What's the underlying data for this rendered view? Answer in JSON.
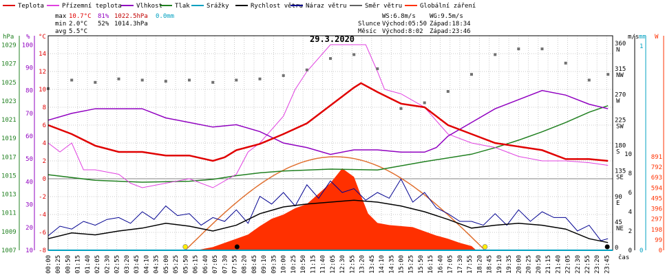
{
  "chart_data": {
    "type": "line",
    "title": "29.3.2020",
    "xlabel": "čas",
    "legend": {
      "items": [
        {
          "name": "Teplota",
          "color": "#e00000"
        },
        {
          "name": "Přízemní teplota",
          "color": "#e040e0"
        },
        {
          "name": "Vlhkost",
          "color": "#9000c0"
        },
        {
          "name": "Tlak",
          "color": "#208020"
        },
        {
          "name": "Srážky",
          "color": "#00a0c0"
        },
        {
          "name": "Rychlost větru",
          "color": "#000000"
        },
        {
          "name": "Náraz větru",
          "color": "#000090"
        },
        {
          "name": "Směr větru",
          "color": "#606060"
        },
        {
          "name": "Globální záření",
          "color": "#ff3000"
        }
      ],
      "placement": "top"
    },
    "stats": {
      "max": {
        "label": "max",
        "temp": "10.7°C",
        "hum": "81%",
        "press": "1022.5hPa",
        "rain": "0.0mm"
      },
      "min": {
        "label": "min",
        "temp": "2.0°C",
        "hum": "52%",
        "press": "1014.3hPa"
      },
      "avg": {
        "label": "avg",
        "temp": "5.5°C"
      }
    },
    "info": {
      "ws": "WS:6.8m/s",
      "wg": "WG:9.5m/s",
      "sun_label": "Slunce",
      "sun_rise": "Východ:05:50",
      "sun_set": "Západ:18:34",
      "moon_label": "Měsíc",
      "moon_rise": "Východ:8:02",
      "moon_set": "Západ:23:46"
    },
    "axis_units": {
      "press": "hPa",
      "hum": "%",
      "temp": "°C",
      "wind": "m/s",
      "rain": "mm",
      "rad": "W"
    },
    "press_ticks": [
      1007,
      1009,
      1011,
      1013,
      1015,
      1017,
      1019,
      1021,
      1023,
      1025,
      1027,
      1029
    ],
    "hum_ticks": [
      10,
      20,
      30,
      40,
      50,
      60,
      70,
      80,
      90,
      100
    ],
    "temp_ticks": [
      -8,
      -6,
      -4,
      -2,
      0,
      2,
      4,
      6,
      8,
      10,
      12,
      14
    ],
    "wind_ticks": [
      0,
      2,
      4,
      6,
      8,
      10
    ],
    "rain_ticks": [
      0,
      1
    ],
    "rad_ticks": [
      0,
      99,
      198,
      297,
      396,
      495,
      594,
      693,
      792,
      891
    ],
    "dir_ticks": [
      {
        "deg": "360",
        "dir": "N"
      },
      {
        "deg": "315",
        "dir": "NW"
      },
      {
        "deg": "270",
        "dir": "W"
      },
      {
        "deg": "225",
        "dir": "SW"
      },
      {
        "deg": "180",
        "dir": "S"
      },
      {
        "deg": "135",
        "dir": "SE"
      },
      {
        "deg": "90",
        "dir": "E"
      },
      {
        "deg": "45",
        "dir": "NE"
      },
      {
        "deg": "0",
        "dir": ""
      }
    ],
    "x_ticks": [
      "00:00",
      "00:25",
      "00:50",
      "01:15",
      "01:40",
      "02:05",
      "02:30",
      "02:55",
      "03:20",
      "03:45",
      "04:10",
      "04:35",
      "05:00",
      "05:25",
      "05:50",
      "06:15",
      "06:40",
      "07:05",
      "07:30",
      "07:55",
      "08:20",
      "08:45",
      "09:10",
      "09:35",
      "10:00",
      "10:25",
      "10:50",
      "11:15",
      "11:40",
      "12:05",
      "12:30",
      "12:55",
      "13:20",
      "13:45",
      "14:10",
      "14:35",
      "15:00",
      "15:25",
      "15:50",
      "16:15",
      "16:40",
      "17:05",
      "17:30",
      "17:55",
      "18:20",
      "18:45",
      "19:10",
      "19:35",
      "20:00",
      "20:25",
      "20:50",
      "21:15",
      "21:40",
      "22:05",
      "22:30",
      "22:55",
      "23:20",
      "23:45"
    ],
    "series": [
      {
        "key": "temp",
        "name": "Teplota",
        "unit": "°C",
        "x": [
          0,
          1,
          2,
          3,
          4,
          5,
          6,
          7,
          7.5,
          8,
          9,
          10,
          11,
          12,
          12.5,
          13,
          13.3,
          14,
          15,
          16,
          17,
          18,
          19,
          20,
          21,
          22,
          23,
          23.8
        ],
        "values": [
          6.0,
          5.0,
          3.7,
          3.0,
          3.0,
          2.6,
          2.6,
          2.0,
          2.4,
          3.2,
          3.9,
          5.0,
          6.2,
          8.2,
          9.2,
          10.2,
          10.7,
          9.7,
          8.4,
          8.0,
          6.0,
          5.0,
          4.0,
          3.6,
          3.2,
          2.2,
          2.2,
          2.0
        ]
      },
      {
        "key": "ground",
        "name": "Přízemní teplota",
        "unit": "°C",
        "x": [
          0,
          0.5,
          1,
          1.5,
          2,
          3,
          3.5,
          4,
          5,
          6,
          7,
          8,
          8.5,
          9,
          10,
          10.5,
          11,
          12,
          13,
          13.5,
          14,
          14.3,
          15,
          16,
          17,
          18,
          19,
          20,
          21,
          22,
          23,
          23.8
        ],
        "values": [
          4,
          3,
          4,
          1,
          1,
          0.5,
          -0.5,
          -1,
          -0.5,
          0,
          -1,
          0.5,
          3,
          4,
          7,
          10,
          12,
          15,
          15,
          15,
          12,
          10,
          9.5,
          8,
          5,
          4,
          3.5,
          2.5,
          2,
          2,
          1.8,
          1.5
        ]
      },
      {
        "key": "hum",
        "name": "Vlhkost",
        "unit": "%",
        "x": [
          0,
          1,
          2,
          4,
          5,
          6,
          7,
          8,
          9,
          10,
          11,
          12,
          13,
          14,
          15,
          16,
          16.5,
          17,
          18,
          19,
          20,
          21,
          22,
          23,
          23.8
        ],
        "values": [
          67,
          70,
          72,
          72,
          68,
          66,
          64,
          65,
          62,
          57,
          55,
          52,
          54,
          54,
          53,
          53,
          55,
          60,
          66,
          72,
          76,
          80,
          78,
          74,
          72
        ]
      },
      {
        "key": "press",
        "name": "Tlak",
        "unit": "hPa",
        "x": [
          0,
          2,
          4,
          6,
          7,
          8,
          9,
          10,
          12,
          14,
          16,
          18,
          19,
          20,
          21,
          22,
          23,
          23.8
        ],
        "values": [
          1015.1,
          1014.5,
          1014.3,
          1014.4,
          1014.6,
          1015.0,
          1015.3,
          1015.5,
          1015.7,
          1015.6,
          1016.5,
          1017.3,
          1018.0,
          1018.8,
          1019.7,
          1020.7,
          1021.8,
          1022.5
        ]
      },
      {
        "key": "wind",
        "name": "Rychlost větru",
        "unit": "m/s",
        "x": [
          0,
          1,
          2,
          3,
          4,
          5,
          6,
          7,
          8,
          9,
          10,
          11,
          12,
          13,
          14,
          15,
          16,
          17,
          18,
          19,
          20,
          21,
          22,
          23,
          23.8
        ],
        "values": [
          1.2,
          1.8,
          1.6,
          2.0,
          2.3,
          2.8,
          2.5,
          2.0,
          2.6,
          3.8,
          4.5,
          4.8,
          5.0,
          5.2,
          5.0,
          4.6,
          4.0,
          3.2,
          2.3,
          2.6,
          2.8,
          2.6,
          2.2,
          1.2,
          0.8
        ]
      },
      {
        "key": "gust",
        "name": "Náraz větru",
        "unit": "m/s",
        "x": [
          0,
          0.5,
          1,
          1.5,
          2,
          2.5,
          3,
          3.5,
          4,
          4.5,
          5,
          5.5,
          6,
          6.5,
          7,
          7.5,
          8,
          8.5,
          9,
          9.5,
          10,
          10.5,
          11,
          11.5,
          12,
          12.5,
          13,
          13.5,
          14,
          14.5,
          15,
          15.5,
          16,
          16.5,
          17,
          17.5,
          18,
          18.5,
          19,
          19.5,
          20,
          20.5,
          21,
          21.5,
          22,
          22.5,
          23,
          23.5,
          23.8
        ],
        "values": [
          1.5,
          2.5,
          2.2,
          3.0,
          2.6,
          3.2,
          3.4,
          2.8,
          4.0,
          3.2,
          4.6,
          3.6,
          3.8,
          2.6,
          3.4,
          3.0,
          4.2,
          2.8,
          5.6,
          4.8,
          6.0,
          4.6,
          6.8,
          5.4,
          7.2,
          6.0,
          6.4,
          5.2,
          6.0,
          5.4,
          7.4,
          5.0,
          6.0,
          4.4,
          3.8,
          3.0,
          3.0,
          2.6,
          3.8,
          2.6,
          4.2,
          3.0,
          4.0,
          3.4,
          3.4,
          2.0,
          2.6,
          1.0,
          1.2
        ]
      },
      {
        "key": "rad",
        "name": "Globální záření",
        "unit": "W",
        "x": [
          6.3,
          7,
          8,
          8.5,
          9,
          9.5,
          10,
          10.5,
          11,
          11.5,
          12,
          12.5,
          13,
          13.3,
          13.6,
          14,
          14.5,
          15,
          15.5,
          16,
          16.5,
          17,
          17.5,
          18,
          18.2
        ],
        "values": [
          0,
          30,
          110,
          150,
          230,
          300,
          340,
          400,
          440,
          540,
          640,
          780,
          700,
          520,
          350,
          260,
          240,
          230,
          220,
          180,
          140,
          110,
          70,
          40,
          0
        ]
      }
    ],
    "wind_dir": {
      "name": "Směr větru",
      "unit": "°",
      "x": [
        0,
        1,
        2,
        3,
        4,
        5,
        6,
        7,
        8,
        9,
        10,
        11,
        12,
        13,
        14,
        15,
        16,
        17,
        18,
        19,
        20,
        21,
        22,
        23,
        23.8
      ],
      "values": [
        285,
        300,
        296,
        302,
        300,
        298,
        300,
        296,
        300,
        302,
        308,
        318,
        338,
        345,
        320,
        250,
        260,
        280,
        310,
        345,
        355,
        355,
        330,
        300,
        310
      ]
    },
    "astro": {
      "sunrise": 5.83,
      "sunset": 18.57,
      "moonrise": 8.03,
      "moonset": 23.77
    }
  }
}
